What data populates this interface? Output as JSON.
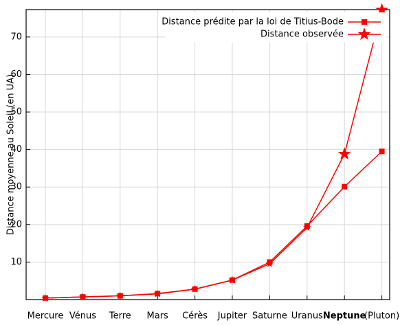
{
  "chart_data": {
    "type": "line",
    "y_label": "Distance moyenne au Soleil (en UA)",
    "categories": [
      "Mercure",
      "Vénus",
      "Terre",
      "Mars",
      "Cérès",
      "Jupiter",
      "Saturne",
      "Uranus",
      "Neptune",
      "(Pluton)"
    ],
    "series": [
      {
        "name": "Distance prédite par la loi de Titius-Bode",
        "color": "#ff0000",
        "marker": "square",
        "values": [
          0.4,
          0.7,
          1.0,
          1.6,
          2.8,
          5.2,
          10.0,
          19.6,
          30.1,
          39.5
        ]
      },
      {
        "name": "Distance observée",
        "color": "#ff0000",
        "marker": "star",
        "values": [
          0.39,
          0.72,
          1.0,
          1.52,
          2.77,
          5.2,
          9.54,
          19.2,
          38.8,
          77.2
        ]
      }
    ],
    "ylim": [
      0,
      77.3
    ],
    "yticks": [
      10,
      20,
      30,
      40,
      50,
      60,
      70
    ],
    "grid": true,
    "legend": "top-right"
  }
}
